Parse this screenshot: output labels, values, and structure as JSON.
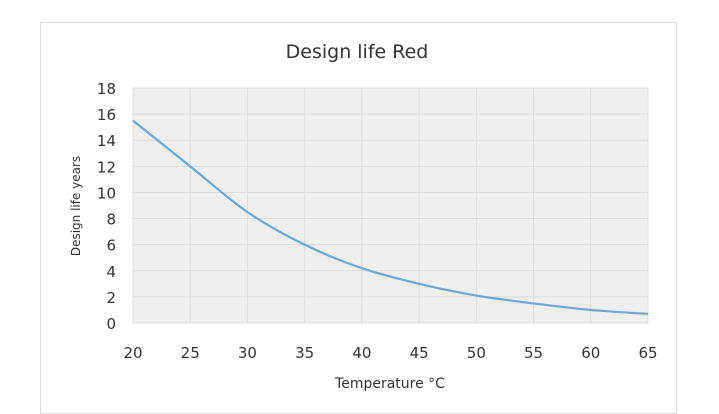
{
  "chart_data": {
    "type": "line",
    "title": "Design life Red",
    "xlabel": "Temperature  °C",
    "ylabel": "Design life years",
    "xlim": [
      20,
      65
    ],
    "ylim": [
      0,
      18
    ],
    "x_ticks": [
      20,
      25,
      30,
      35,
      40,
      45,
      50,
      55,
      60,
      65
    ],
    "y_ticks": [
      0,
      2,
      4,
      6,
      8,
      10,
      12,
      14,
      16,
      18
    ],
    "grid": true,
    "series": [
      {
        "name": "Design life Red",
        "color": "#6fa6d6",
        "x": [
          20,
          25,
          30,
          35,
          40,
          45,
          50,
          55,
          60,
          65
        ],
        "values": [
          15.5,
          12,
          8.5,
          6,
          4.2,
          3,
          2.1,
          1.5,
          1.0,
          0.7
        ]
      }
    ]
  }
}
